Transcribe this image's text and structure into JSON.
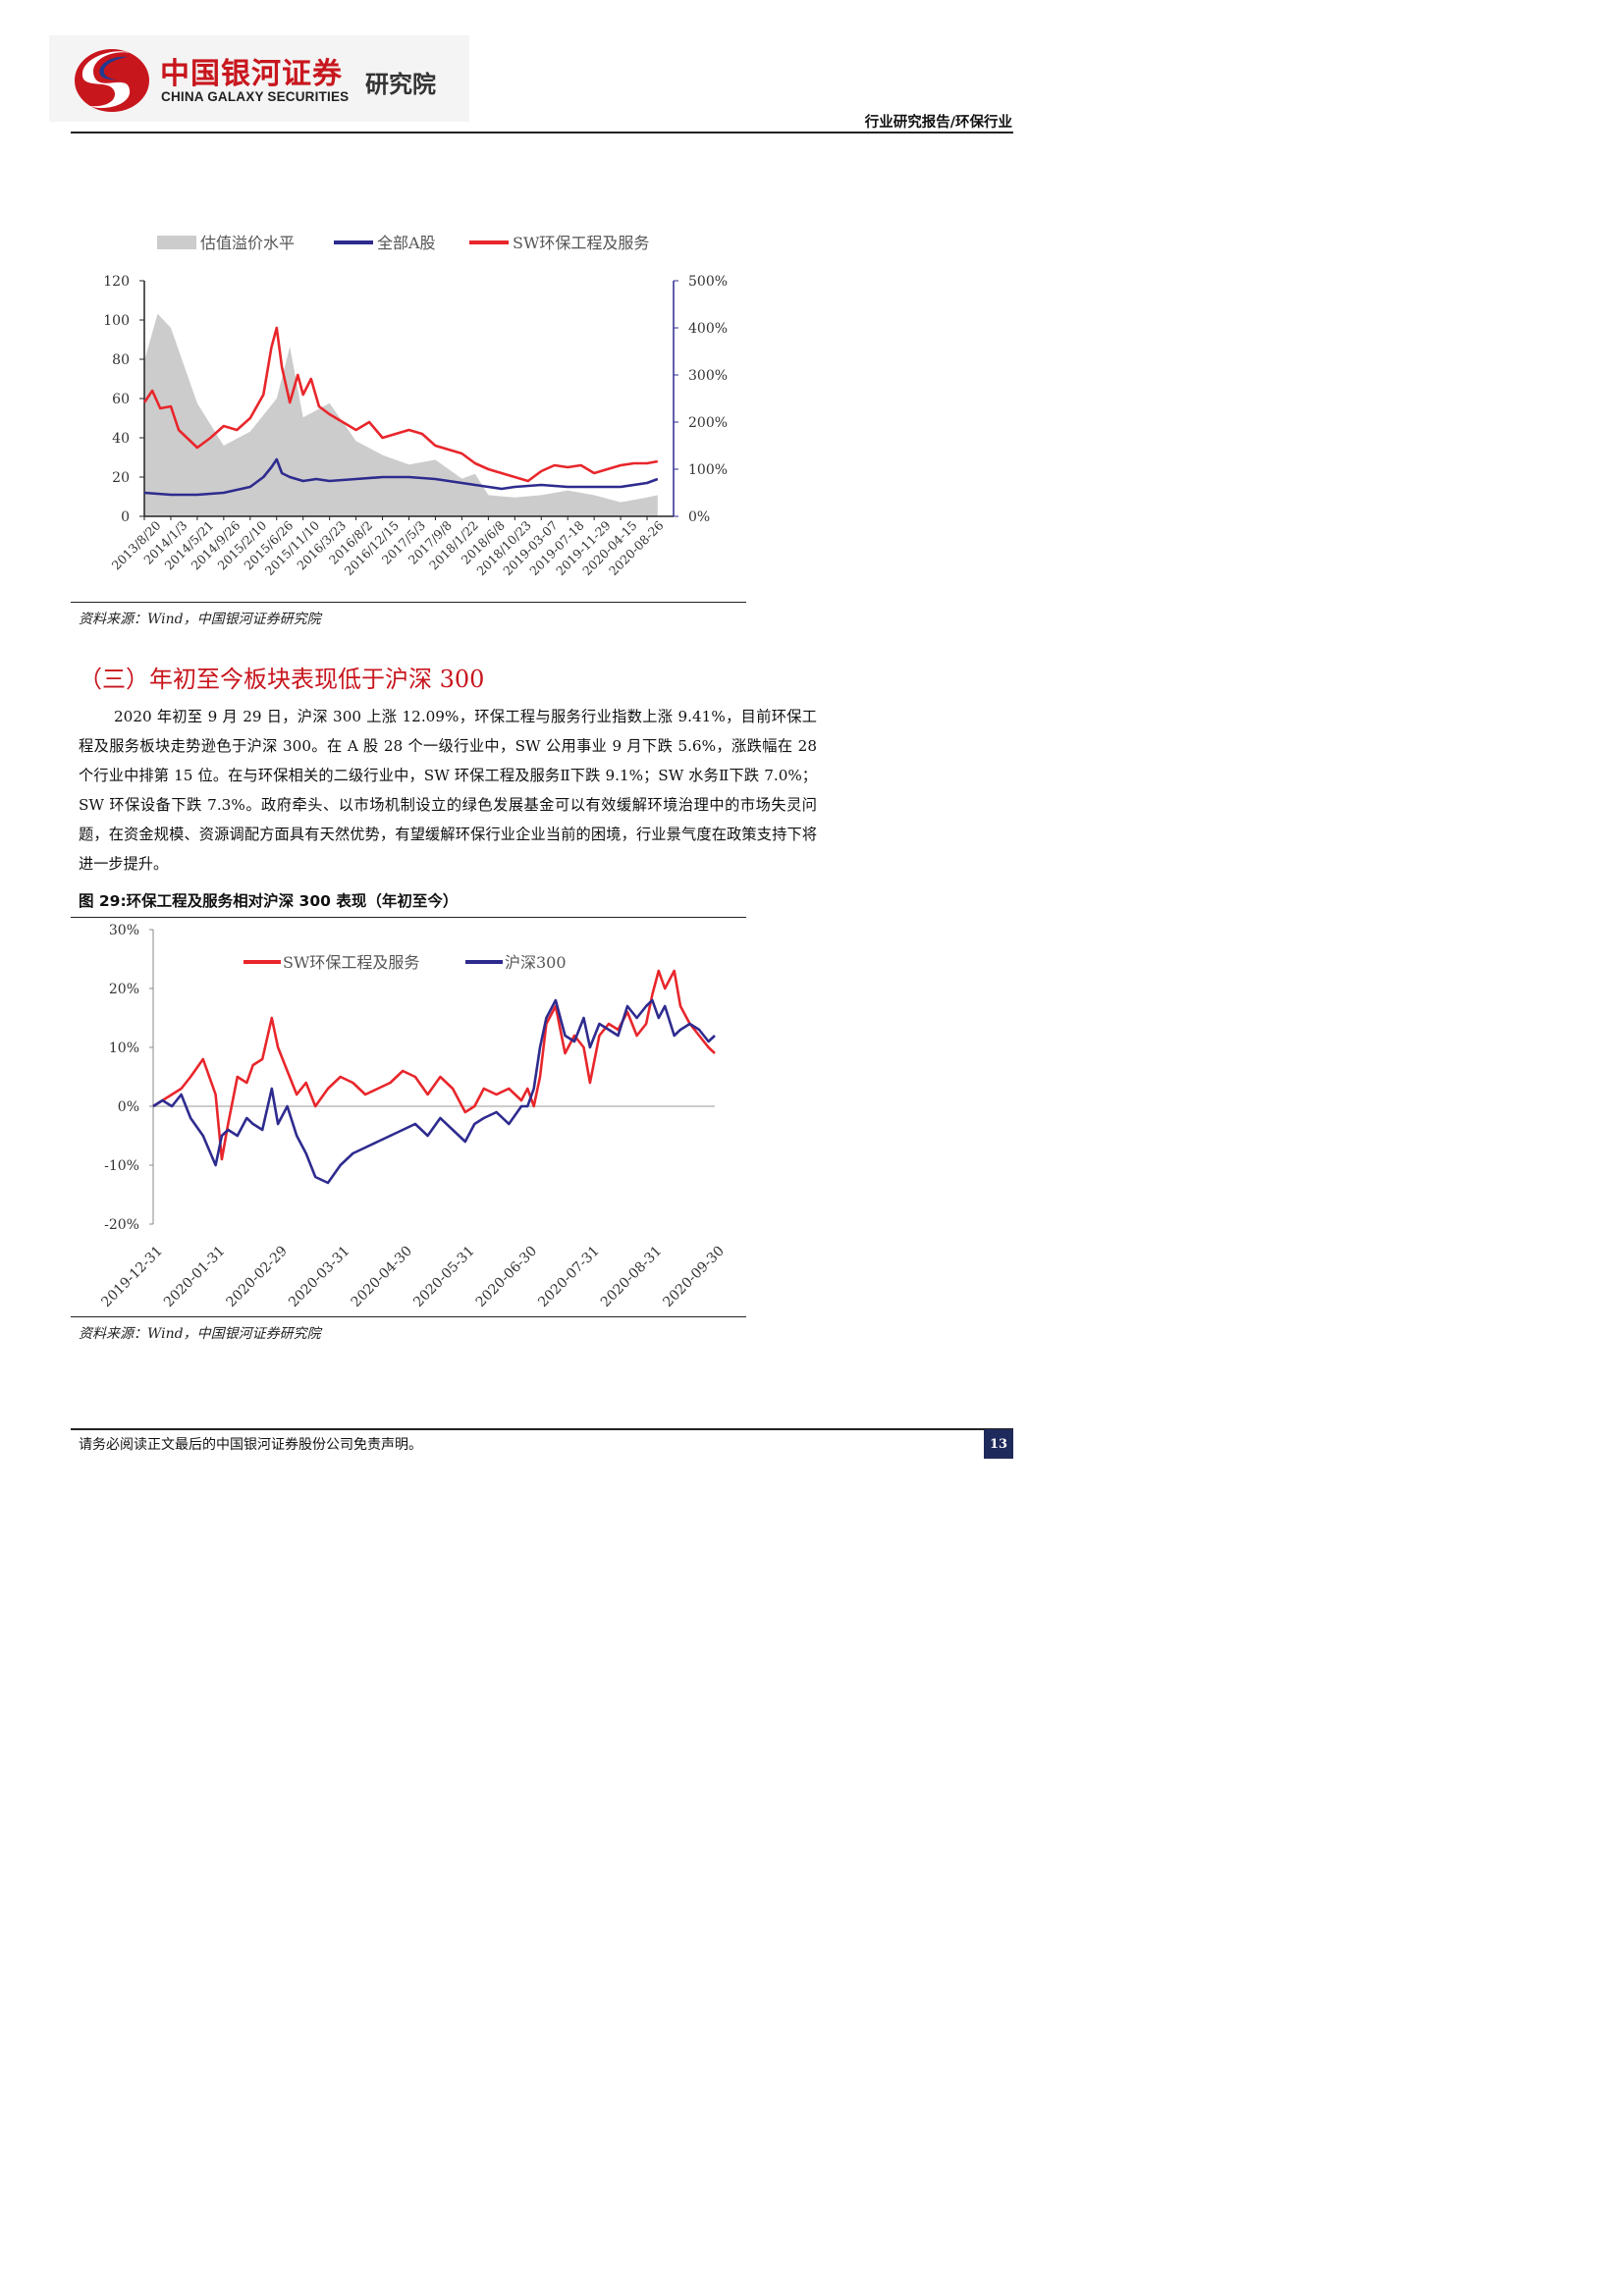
{
  "header": {
    "logo_cn": "中国银河证券",
    "logo_en": "CHINA GALAXY SECURITIES",
    "logo_institute": "研究院",
    "report_type": "行业研究报告/环保行业"
  },
  "chart1": {
    "source": "资料来源：Wind，中国银河证券研究院"
  },
  "section": {
    "title": "（三）年初至今板块表现低于沪深 300",
    "paragraph": "2020 年初至 9 月 29 日，沪深 300 上涨 12.09%，环保工程与服务行业指数上涨 9.41%，目前环保工程及服务板块走势逊色于沪深 300。在 A 股 28 个一级行业中，SW 公用事业 9 月下跌 5.6%，涨跌幅在 28 个行业中排第 15 位。在与环保相关的二级行业中，SW 环保工程及服务Ⅱ下跌 9.1%；SW 水务Ⅱ下跌 7.0%；SW 环保设备下跌 7.3%。政府牵头、以市场机制设立的绿色发展基金可以有效缓解环境治理中的市场失灵问题，在资金规模、资源调配方面具有天然优势，有望缓解环保行业企业当前的困境，行业景气度在政策支持下将进一步提升。"
  },
  "chart2": {
    "figure_title": "图 29:环保工程及服务相对沪深 300 表现（年初至今）",
    "source": "资料来源：Wind，中国银河证券研究院"
  },
  "footer": {
    "disclaimer": "请务必阅读正文最后的中国银河证券股份公司免责声明。",
    "page_number": "13"
  },
  "chart_data": [
    {
      "type": "line",
      "legend_position": "top",
      "x_ticks": [
        "2013/8/20",
        "2014/1/3",
        "2014/5/21",
        "2014/9/26",
        "2015/2/10",
        "2015/6/26",
        "2015/11/10",
        "2016/3/23",
        "2016/8/2",
        "2016/12/15",
        "2017/5/3",
        "2017/9/8",
        "2018/1/22",
        "2018/6/8",
        "2018/10/23",
        "2019-03-07",
        "2019-07-18",
        "2019-11-29",
        "2020-04-15",
        "2020-08-26"
      ],
      "y_left_ticks": [
        "0",
        "20",
        "40",
        "60",
        "80",
        "100",
        "120"
      ],
      "y_left_range": [
        0,
        120
      ],
      "y_right_ticks": [
        "0%",
        "100%",
        "200%",
        "300%",
        "400%",
        "500%"
      ],
      "y_right_range": [
        0,
        500
      ],
      "color_premium": "#cccccc",
      "color_all_a": "#2e2b8f",
      "color_sw": "#e8262b",
      "series": [
        {
          "name": "估值溢价水平",
          "axis": "right",
          "style": "area",
          "x": [
            0,
            0.5,
            1,
            2,
            3,
            4,
            5,
            5.5,
            6,
            7,
            8,
            9,
            10,
            11,
            11.5,
            12,
            12.5,
            13,
            14,
            15,
            16,
            17,
            18,
            19,
            19.4
          ],
          "values": [
            330,
            430,
            400,
            240,
            150,
            180,
            250,
            360,
            210,
            240,
            160,
            130,
            110,
            120,
            100,
            80,
            90,
            45,
            40,
            45,
            55,
            45,
            30,
            40,
            45
          ]
        },
        {
          "name": "全部A股",
          "axis": "left",
          "x": [
            0,
            1,
            2,
            3,
            4,
            4.5,
            4.8,
            5,
            5.2,
            5.5,
            6,
            6.5,
            7,
            8,
            9,
            10,
            11,
            11.5,
            12,
            13,
            13.5,
            14,
            15,
            16,
            17,
            18,
            19,
            19.4
          ],
          "values": [
            12,
            11,
            11,
            12,
            15,
            20,
            25,
            29,
            22,
            20,
            18,
            19,
            18,
            19,
            20,
            20,
            19,
            18,
            17,
            15,
            14,
            15,
            16,
            15,
            15,
            15,
            17,
            19
          ]
        },
        {
          "name": "SW环保工程及服务",
          "axis": "left",
          "x": [
            0,
            0.3,
            0.6,
            1,
            1.3,
            2,
            2.5,
            3,
            3.5,
            4,
            4.5,
            4.8,
            5,
            5.2,
            5.5,
            5.8,
            6,
            6.3,
            6.6,
            7,
            7.5,
            8,
            8.5,
            9,
            9.5,
            10,
            10.5,
            11,
            11.5,
            12,
            12.5,
            13,
            13.5,
            14,
            14.5,
            15,
            15.5,
            16,
            16.5,
            17,
            17.5,
            18,
            18.5,
            19,
            19.4
          ],
          "values": [
            58,
            64,
            55,
            56,
            44,
            35,
            40,
            46,
            44,
            50,
            62,
            86,
            96,
            76,
            58,
            72,
            62,
            70,
            56,
            52,
            48,
            44,
            48,
            40,
            42,
            44,
            42,
            36,
            34,
            32,
            27,
            24,
            22,
            20,
            18,
            23,
            26,
            25,
            26,
            22,
            24,
            26,
            27,
            27,
            28
          ]
        }
      ]
    },
    {
      "type": "line",
      "legend_position": "top",
      "x_ticks": [
        "2019-12-31",
        "2020-01-31",
        "2020-02-29",
        "2020-03-31",
        "2020-04-30",
        "2020-05-31",
        "2020-06-30",
        "2020-07-31",
        "2020-08-31",
        "2020-09-30"
      ],
      "y_ticks": [
        "-20%",
        "-10%",
        "0%",
        "10%",
        "20%",
        "30%"
      ],
      "y_range": [
        -20,
        30
      ],
      "color_sw": "#e8262b",
      "color_hs300": "#2e2b8f",
      "series": [
        {
          "name": "SW环保工程及服务",
          "x": [
            0,
            0.15,
            0.3,
            0.45,
            0.6,
            0.8,
            1.0,
            1.1,
            1.2,
            1.35,
            1.5,
            1.6,
            1.75,
            1.9,
            2.0,
            2.15,
            2.3,
            2.45,
            2.6,
            2.8,
            3.0,
            3.2,
            3.4,
            3.6,
            3.8,
            4.0,
            4.2,
            4.4,
            4.6,
            4.8,
            5.0,
            5.15,
            5.3,
            5.5,
            5.7,
            5.9,
            6.0,
            6.1,
            6.2,
            6.3,
            6.45,
            6.6,
            6.75,
            6.9,
            7.0,
            7.15,
            7.3,
            7.45,
            7.6,
            7.75,
            7.9,
            8.0,
            8.1,
            8.2,
            8.35,
            8.45,
            8.6,
            8.75,
            8.9,
            9.0
          ],
          "values": [
            0,
            1,
            2,
            3,
            5,
            8,
            2,
            -9,
            -3,
            5,
            4,
            7,
            8,
            15,
            10,
            6,
            2,
            4,
            0,
            3,
            5,
            4,
            2,
            3,
            4,
            6,
            5,
            2,
            5,
            3,
            -1,
            0,
            3,
            2,
            3,
            1,
            3,
            0,
            5,
            14,
            17,
            9,
            12,
            10,
            4,
            12,
            14,
            13,
            16,
            12,
            14,
            19,
            23,
            20,
            23,
            17,
            14,
            12,
            10,
            9
          ]
        },
        {
          "name": "沪深300",
          "x": [
            0,
            0.15,
            0.3,
            0.45,
            0.6,
            0.8,
            1.0,
            1.1,
            1.2,
            1.35,
            1.5,
            1.6,
            1.75,
            1.9,
            2.0,
            2.15,
            2.3,
            2.45,
            2.6,
            2.8,
            3.0,
            3.2,
            3.4,
            3.6,
            3.8,
            4.0,
            4.2,
            4.4,
            4.6,
            4.8,
            5.0,
            5.15,
            5.3,
            5.5,
            5.7,
            5.9,
            6.0,
            6.1,
            6.2,
            6.3,
            6.45,
            6.6,
            6.75,
            6.9,
            7.0,
            7.15,
            7.3,
            7.45,
            7.6,
            7.75,
            7.9,
            8.0,
            8.1,
            8.2,
            8.35,
            8.45,
            8.6,
            8.75,
            8.9,
            9.0
          ],
          "values": [
            0,
            1,
            0,
            2,
            -2,
            -5,
            -10,
            -5,
            -4,
            -5,
            -2,
            -3,
            -4,
            3,
            -3,
            0,
            -5,
            -8,
            -12,
            -13,
            -10,
            -8,
            -7,
            -6,
            -5,
            -4,
            -3,
            -5,
            -2,
            -4,
            -6,
            -3,
            -2,
            -1,
            -3,
            0,
            0,
            3,
            10,
            15,
            18,
            12,
            11,
            15,
            10,
            14,
            13,
            12,
            17,
            15,
            17,
            18,
            15,
            17,
            12,
            13,
            14,
            13,
            11,
            12
          ]
        }
      ]
    }
  ]
}
